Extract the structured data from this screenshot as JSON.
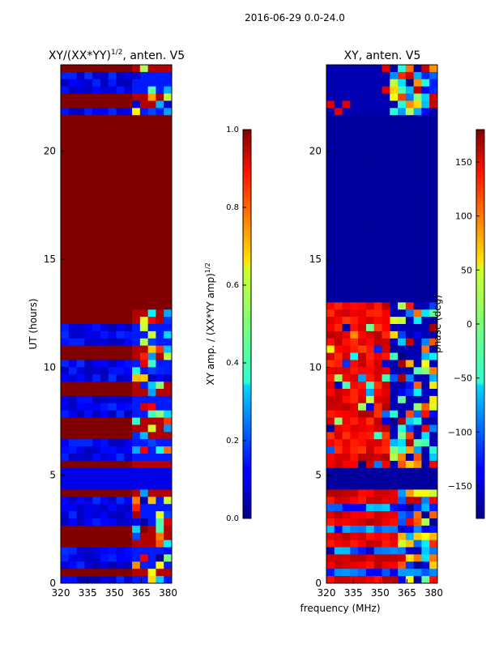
{
  "figure": {
    "suptitle": "2016-06-29 0.0-24.0",
    "xlabel": "frequency (MHz)"
  },
  "chart_data": [
    {
      "type": "heatmap",
      "title": "XY/(XX*YY)^1/2, anten. V5",
      "title_main": "XY/(XX*YY)",
      "title_sup": "1/2",
      "title_tail": ", anten. V5",
      "xlabel": "",
      "ylabel": "UT (hours)",
      "xlim": [
        320,
        382
      ],
      "ylim": [
        0,
        24
      ],
      "xticks": [
        320,
        335,
        350,
        365,
        380
      ],
      "yticks": [
        0,
        5,
        10,
        15,
        20
      ],
      "colorbar": {
        "label": "XY amp. / (XX*YY amp)^1/2",
        "label_main": "XY amp. / (XX*YY amp)",
        "label_sup": "1/2",
        "range": [
          0.0,
          1.0
        ],
        "ticks": [
          "0.0",
          "0.2",
          "0.4",
          "0.6",
          "0.8",
          "1.0"
        ]
      },
      "regions": [
        {
          "y": [
            0,
            4.2
          ],
          "value": "mixed",
          "note": "alternating saturated/low rows, speckle 360-380 MHz"
        },
        {
          "y": [
            4.2,
            5.5
          ],
          "value": 0.1
        },
        {
          "y": [
            5.5,
            7.5
          ],
          "value": "mixed"
        },
        {
          "y": [
            7.5,
            12.8
          ],
          "value": "mixed"
        },
        {
          "y": [
            12.8,
            21.7
          ],
          "value": 1.0
        },
        {
          "y": [
            21.7,
            24
          ],
          "value": "mixed"
        }
      ]
    },
    {
      "type": "heatmap",
      "title": "XY, anten. V5",
      "xlabel": "frequency (MHz)",
      "ylabel": "",
      "xlim": [
        320,
        382
      ],
      "ylim": [
        0,
        24
      ],
      "xticks": [
        320,
        335,
        350,
        365,
        380
      ],
      "yticks": [
        0,
        5,
        10,
        15,
        20
      ],
      "colorbar": {
        "label": "phase (deg)",
        "range": [
          -180,
          180
        ],
        "ticks": [
          "150",
          "100",
          "50",
          "0",
          "−50",
          "−100",
          "−150"
        ],
        "tick_values": [
          150,
          100,
          50,
          0,
          -50,
          -100,
          -150
        ]
      },
      "regions": [
        {
          "y": [
            0,
            4.2
          ],
          "value": "mixed",
          "note": "stripes of ~140 deg with noise"
        },
        {
          "y": [
            4.2,
            5.5
          ],
          "value": -170
        },
        {
          "y": [
            5.5,
            13.0
          ],
          "value": "mixed",
          "note": "mostly 100-170 deg with noisy high band"
        },
        {
          "y": [
            13.0,
            21.7
          ],
          "value": -170
        },
        {
          "y": [
            21.7,
            24
          ],
          "value": "mixed"
        }
      ]
    }
  ],
  "colors": {
    "jet_low": "#00007f",
    "jet_high": "#7f0000"
  }
}
